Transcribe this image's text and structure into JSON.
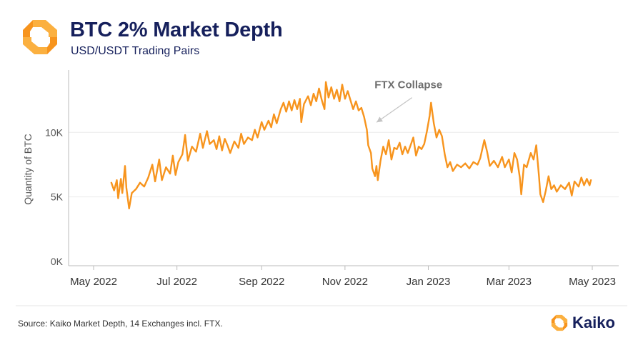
{
  "header": {
    "title": "BTC 2% Market Depth",
    "subtitle": "USD/USDT Trading Pairs"
  },
  "footer": {
    "source": "Source: Kaiko Market Depth, 14 Exchanges incl. FTX.",
    "brand": "Kaiko"
  },
  "colors": {
    "series": "#f7941d",
    "logo_orange": "#f7941d",
    "logo_yellow": "#fbb040",
    "title": "#16205c",
    "grid": "#ececec",
    "annotation": "#6e6e6e"
  },
  "chart_data": {
    "type": "line",
    "title": "BTC 2% Market Depth",
    "subtitle": "USD/USDT Trading Pairs",
    "xlabel": "",
    "ylabel": "Quantity of BTC",
    "ylim": [
      0,
      14500
    ],
    "yticks": [
      {
        "value": 0,
        "label": "0K"
      },
      {
        "value": 5000,
        "label": "5K"
      },
      {
        "value": 10000,
        "label": "10K"
      }
    ],
    "xlim": [
      0,
      390
    ],
    "xticks": [
      {
        "day": 0,
        "label": "May 2022"
      },
      {
        "day": 61,
        "label": "Jul 2022"
      },
      {
        "day": 123,
        "label": "Sep 2022"
      },
      {
        "day": 184,
        "label": "Nov 2022"
      },
      {
        "day": 245,
        "label": "Jan 2023"
      },
      {
        "day": 304,
        "label": "Mar 2023"
      },
      {
        "day": 365,
        "label": "May 2023"
      }
    ],
    "grid": true,
    "series": [
      {
        "name": "BTC 2% Market Depth",
        "x_unit": "days since 2022-05-01",
        "points": [
          [
            13,
            6100
          ],
          [
            15,
            5500
          ],
          [
            17,
            6300
          ],
          [
            18,
            4900
          ],
          [
            20,
            6400
          ],
          [
            21,
            5300
          ],
          [
            23,
            7400
          ],
          [
            24,
            5700
          ],
          [
            26,
            4100
          ],
          [
            28,
            5300
          ],
          [
            31,
            5600
          ],
          [
            34,
            6100
          ],
          [
            37,
            5800
          ],
          [
            40,
            6500
          ],
          [
            43,
            7500
          ],
          [
            45,
            6200
          ],
          [
            48,
            7900
          ],
          [
            50,
            6300
          ],
          [
            53,
            7300
          ],
          [
            56,
            6800
          ],
          [
            58,
            8200
          ],
          [
            60,
            6700
          ],
          [
            62,
            7700
          ],
          [
            65,
            8300
          ],
          [
            67,
            9800
          ],
          [
            69,
            7800
          ],
          [
            72,
            8900
          ],
          [
            75,
            8500
          ],
          [
            78,
            9900
          ],
          [
            80,
            8800
          ],
          [
            83,
            10100
          ],
          [
            85,
            9100
          ],
          [
            88,
            9400
          ],
          [
            90,
            8700
          ],
          [
            92,
            9700
          ],
          [
            94,
            8600
          ],
          [
            96,
            9500
          ],
          [
            98,
            9000
          ],
          [
            100,
            8400
          ],
          [
            103,
            9300
          ],
          [
            106,
            8800
          ],
          [
            108,
            9900
          ],
          [
            110,
            9100
          ],
          [
            113,
            9600
          ],
          [
            116,
            9400
          ],
          [
            118,
            10200
          ],
          [
            120,
            9600
          ],
          [
            123,
            10800
          ],
          [
            125,
            10200
          ],
          [
            128,
            10900
          ],
          [
            130,
            10400
          ],
          [
            132,
            11400
          ],
          [
            134,
            10700
          ],
          [
            137,
            11800
          ],
          [
            139,
            12300
          ],
          [
            141,
            11600
          ],
          [
            143,
            12400
          ],
          [
            145,
            11700
          ],
          [
            147,
            12500
          ],
          [
            149,
            11800
          ],
          [
            151,
            12600
          ],
          [
            152,
            10800
          ],
          [
            154,
            12200
          ],
          [
            157,
            12800
          ],
          [
            159,
            12100
          ],
          [
            161,
            13000
          ],
          [
            163,
            12400
          ],
          [
            165,
            13400
          ],
          [
            167,
            12500
          ],
          [
            169,
            11800
          ],
          [
            170,
            13900
          ],
          [
            172,
            12700
          ],
          [
            174,
            13500
          ],
          [
            176,
            12600
          ],
          [
            178,
            13300
          ],
          [
            180,
            12400
          ],
          [
            182,
            13700
          ],
          [
            184,
            12600
          ],
          [
            186,
            13200
          ],
          [
            188,
            12500
          ],
          [
            190,
            11800
          ],
          [
            192,
            12400
          ],
          [
            194,
            11700
          ],
          [
            196,
            11900
          ],
          [
            198,
            11200
          ],
          [
            200,
            10200
          ],
          [
            201,
            9000
          ],
          [
            203,
            8400
          ],
          [
            204,
            7200
          ],
          [
            206,
            6600
          ],
          [
            207,
            7400
          ],
          [
            208,
            6300
          ],
          [
            210,
            7800
          ],
          [
            212,
            8900
          ],
          [
            214,
            8300
          ],
          [
            216,
            9400
          ],
          [
            218,
            7900
          ],
          [
            220,
            8800
          ],
          [
            222,
            8700
          ],
          [
            224,
            9200
          ],
          [
            226,
            8300
          ],
          [
            228,
            8900
          ],
          [
            230,
            8400
          ],
          [
            232,
            9000
          ],
          [
            234,
            9600
          ],
          [
            236,
            8200
          ],
          [
            238,
            8900
          ],
          [
            240,
            8700
          ],
          [
            242,
            9100
          ],
          [
            244,
            10100
          ],
          [
            246,
            11300
          ],
          [
            247,
            12300
          ],
          [
            249,
            10700
          ],
          [
            251,
            9600
          ],
          [
            253,
            10200
          ],
          [
            255,
            9700
          ],
          [
            257,
            8300
          ],
          [
            259,
            7300
          ],
          [
            261,
            7700
          ],
          [
            263,
            7000
          ],
          [
            266,
            7500
          ],
          [
            269,
            7300
          ],
          [
            272,
            7600
          ],
          [
            275,
            7200
          ],
          [
            278,
            7700
          ],
          [
            281,
            7500
          ],
          [
            283,
            8000
          ],
          [
            286,
            9400
          ],
          [
            288,
            8500
          ],
          [
            290,
            7400
          ],
          [
            293,
            7800
          ],
          [
            296,
            7300
          ],
          [
            299,
            8100
          ],
          [
            301,
            7300
          ],
          [
            304,
            7900
          ],
          [
            306,
            6900
          ],
          [
            308,
            8400
          ],
          [
            310,
            7900
          ],
          [
            312,
            6500
          ],
          [
            313,
            5200
          ],
          [
            315,
            7500
          ],
          [
            317,
            7300
          ],
          [
            320,
            8400
          ],
          [
            322,
            7900
          ],
          [
            324,
            9000
          ],
          [
            326,
            6600
          ],
          [
            327,
            5200
          ],
          [
            329,
            4600
          ],
          [
            331,
            5500
          ],
          [
            333,
            6600
          ],
          [
            335,
            5600
          ],
          [
            337,
            5900
          ],
          [
            339,
            5400
          ],
          [
            342,
            5900
          ],
          [
            345,
            5600
          ],
          [
            348,
            6100
          ],
          [
            350,
            5100
          ],
          [
            352,
            6200
          ],
          [
            355,
            5800
          ],
          [
            357,
            6500
          ],
          [
            359,
            5900
          ],
          [
            361,
            6400
          ],
          [
            363,
            5900
          ],
          [
            364,
            6300
          ]
        ]
      }
    ],
    "annotations": [
      {
        "text": "FTX Collapse",
        "x": 220,
        "y": 13800,
        "arrow_to": [
          204,
          11000
        ]
      }
    ]
  }
}
